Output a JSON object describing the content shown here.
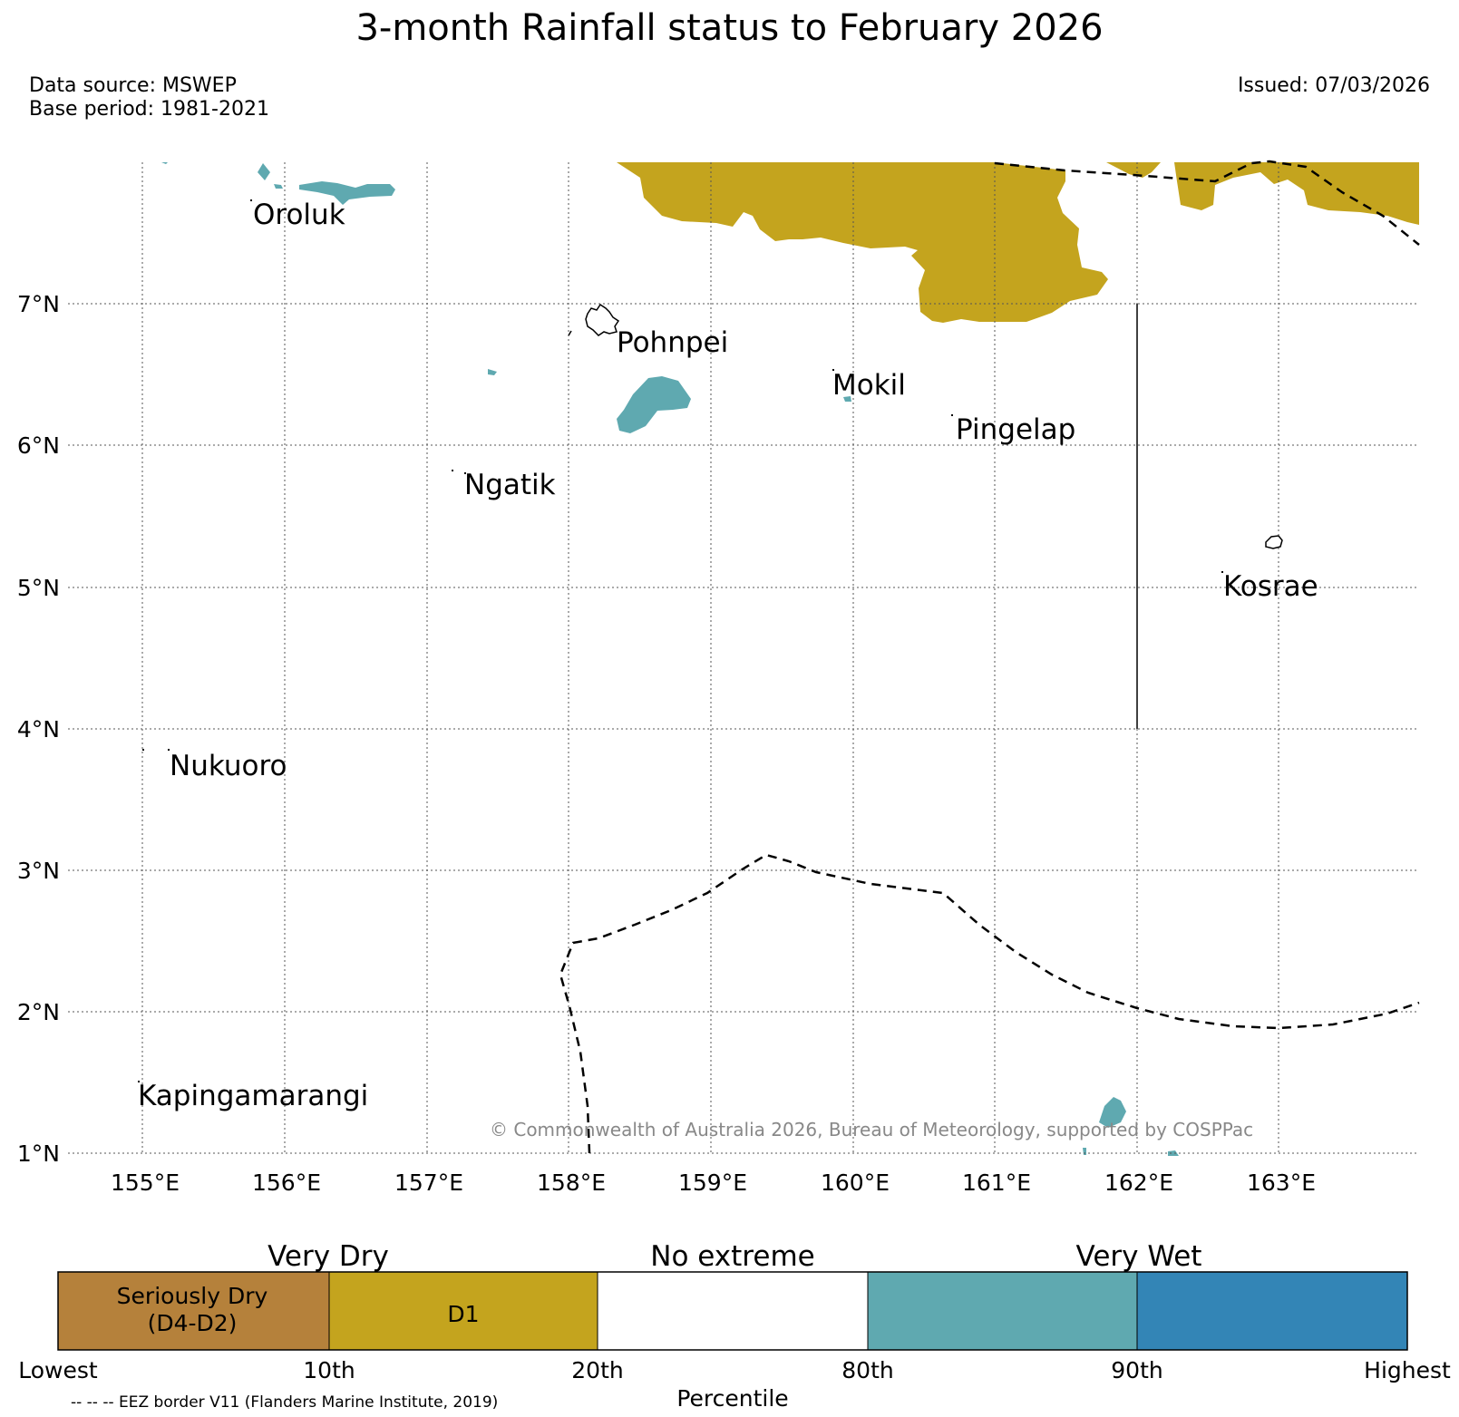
{
  "header": {
    "title": "3-month Rainfall status to February 2026",
    "data_source": "Data source: MSWEP",
    "base_period": "Base period: 1981-2021",
    "issued": "Issued: 07/03/2026"
  },
  "map": {
    "lat_labels": [
      "7°N",
      "6°N",
      "5°N",
      "4°N",
      "3°N",
      "2°N",
      "1°N"
    ],
    "lon_labels": [
      "155°E",
      "156°E",
      "157°E",
      "158°E",
      "159°E",
      "160°E",
      "161°E",
      "162°E",
      "163°E"
    ],
    "places": [
      "Oroluk",
      "Pohnpei",
      "Mokil",
      "Pingelap",
      "Ngatik",
      "Kosrae",
      "Nukuoro",
      "Kapingamarangi"
    ],
    "copyright": "© Commonwealth of Australia 2026, Bureau of Meteorology, supported by COSPPac",
    "colors": {
      "very_wet_80_90": "#5fa9b0",
      "dry_d1": "#c4a41e",
      "seriously_dry": "#b5813b",
      "very_much_wet": "#3385b6",
      "no_extreme": "#ffffff"
    }
  },
  "legend": {
    "headers": [
      "Very Dry",
      "No extreme",
      "Very Wet"
    ],
    "segments": [
      {
        "label_line1": "Seriously Dry",
        "label_line2": "(D4-D2)",
        "color": "#b5813b"
      },
      {
        "label_line1": "D1",
        "label_line2": "",
        "color": "#c4a41e"
      },
      {
        "label_line1": "",
        "label_line2": "",
        "color": "#ffffff"
      },
      {
        "label_line1": "",
        "label_line2": "",
        "color": "#5fa9b0"
      },
      {
        "label_line1": "",
        "label_line2": "",
        "color": "#3385b6"
      }
    ],
    "ticks": [
      "Lowest",
      "10th",
      "20th",
      "80th",
      "90th",
      "Highest"
    ],
    "axis_label": "Percentile",
    "eez_note": "-- -- -- EEZ border V11 (Flanders Marine Institute, 2019)"
  }
}
